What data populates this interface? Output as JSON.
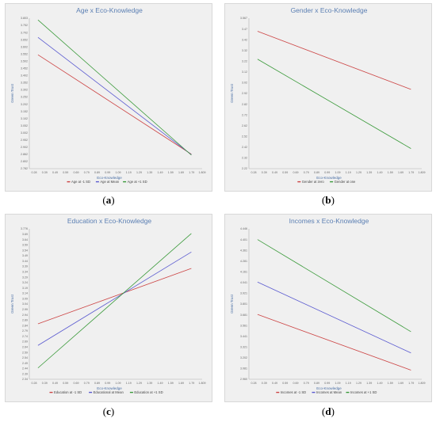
{
  "charts": [
    {
      "caption": "a",
      "chart_data": {
        "type": "line",
        "title": "Age x Eco-Knowledge",
        "xlabel": "Eco-Knowledge",
        "ylabel": "Green Trust",
        "xlim": [
          0.2,
          1.8
        ],
        "ylim": [
          2.782,
          3.803
        ],
        "xticks": [
          "0.28",
          "0.39",
          "0.49",
          "0.59",
          "0.69",
          "0.79",
          "0.89",
          "0.99",
          "1.09",
          "1.19",
          "1.29",
          "1.39",
          "1.49",
          "1.59",
          "1.69",
          "1.79",
          "1.809"
        ],
        "yticks": [
          "2.782",
          "2.802",
          "2.862",
          "2.902",
          "2.952",
          "3.002",
          "3.052",
          "3.102",
          "3.152",
          "3.202",
          "3.252",
          "3.302",
          "3.352",
          "3.402",
          "3.452",
          "3.502",
          "3.552",
          "3.602",
          "3.652",
          "3.702",
          "3.752",
          "3.803"
        ],
        "series": [
          {
            "name": "Age at -1 SD",
            "color": "#cc4444",
            "x": [
              0.28,
              1.7
            ],
            "y": [
              3.555,
              2.88
            ]
          },
          {
            "name": "Age at Mean",
            "color": "#5a5ad0",
            "x": [
              0.28,
              1.7
            ],
            "y": [
              3.673,
              2.877
            ]
          },
          {
            "name": "Age at +1 SD",
            "color": "#3a9a3a",
            "x": [
              0.28,
              1.7
            ],
            "y": [
              3.791,
              2.874
            ]
          }
        ]
      }
    },
    {
      "caption": "b",
      "chart_data": {
        "type": "line",
        "title": "Gender x Eco-Knowledge",
        "xlabel": "Eco-Knowledge",
        "ylabel": "Green Trust",
        "xlim": [
          0.2,
          1.8
        ],
        "ylim": [
          2.22,
          3.567
        ],
        "xticks": [
          "0.28",
          "0.39",
          "0.49",
          "0.59",
          "0.69",
          "0.79",
          "0.89",
          "0.99",
          "1.09",
          "1.19",
          "1.29",
          "1.39",
          "1.49",
          "1.59",
          "1.69",
          "1.79",
          "1.809"
        ],
        "yticks": [
          "2.22",
          "2.32",
          "2.42",
          "2.52",
          "2.62",
          "2.72",
          "2.82",
          "2.92",
          "3.02",
          "3.12",
          "3.22",
          "3.32",
          "3.42",
          "3.47",
          "3.567"
        ],
        "series": [
          {
            "name": "Gender at zero",
            "color": "#cc4444",
            "x": [
              0.28,
              1.7
            ],
            "y": [
              3.45,
              2.93
            ]
          },
          {
            "name": "Gender at one",
            "color": "#3a9a3a",
            "x": [
              0.28,
              1.7
            ],
            "y": [
              3.2,
              2.4
            ]
          }
        ]
      }
    },
    {
      "caption": "c",
      "chart_data": {
        "type": "line",
        "title": "Education x Eco-Knowledge",
        "xlabel": "Eco-Knowledge",
        "ylabel": "Green Trust",
        "xlim": [
          0.2,
          1.8
        ],
        "ylim": [
          2.31,
          3.776
        ],
        "xticks": [
          "0.28",
          "0.39",
          "0.49",
          "0.59",
          "0.69",
          "0.79",
          "0.89",
          "0.99",
          "1.09",
          "1.19",
          "1.29",
          "1.39",
          "1.49",
          "1.59",
          "1.69",
          "1.79",
          "1.809"
        ],
        "yticks": [
          "2.34",
          "2.39",
          "2.44",
          "2.49",
          "2.54",
          "2.59",
          "2.64",
          "2.69",
          "2.74",
          "2.79",
          "2.84",
          "2.89",
          "2.94",
          "2.99",
          "3.04",
          "3.09",
          "3.14",
          "3.19",
          "3.24",
          "3.29",
          "3.34",
          "3.39",
          "3.44",
          "3.49",
          "3.54",
          "3.59",
          "3.64",
          "3.69",
          "3.776"
        ],
        "series": [
          {
            "name": "Education at -1 SD",
            "color": "#cc4444",
            "x": [
              0.28,
              1.7
            ],
            "y": [
              2.85,
              3.39
            ]
          },
          {
            "name": "Educational at Mean",
            "color": "#5a5ad0",
            "x": [
              0.28,
              1.7
            ],
            "y": [
              2.64,
              3.55
            ]
          },
          {
            "name": "Education at +1 SD",
            "color": "#3a9a3a",
            "x": [
              0.28,
              1.7
            ],
            "y": [
              2.42,
              3.73
            ]
          }
        ]
      }
    },
    {
      "caption": "d",
      "chart_data": {
        "type": "line",
        "title": "Incomes x Eco-Knowledge",
        "xlabel": "Eco-Knowledge",
        "ylabel": "Green Trust",
        "xlim": [
          0.2,
          1.8
        ],
        "ylim": [
          2.96,
          4.446
        ],
        "xticks": [
          "0.28",
          "0.39",
          "0.49",
          "0.59",
          "0.69",
          "0.79",
          "0.89",
          "0.99",
          "1.09",
          "1.19",
          "1.29",
          "1.39",
          "1.49",
          "1.59",
          "1.69",
          "1.79",
          "1.809"
        ],
        "yticks": [
          "2.960",
          "3.081",
          "3.202",
          "3.321",
          "3.441",
          "3.561",
          "3.681",
          "3.801",
          "3.921",
          "4.041",
          "4.161",
          "4.281",
          "4.361",
          "4.401",
          "4.446"
        ],
        "series": [
          {
            "name": "Incomes at -1 SD",
            "color": "#cc4444",
            "x": [
              0.28,
              1.7
            ],
            "y": [
              3.6,
              3.05
            ]
          },
          {
            "name": "Incomes at Mean",
            "color": "#5a5ad0",
            "x": [
              0.28,
              1.7
            ],
            "y": [
              3.92,
              3.22
            ]
          },
          {
            "name": "Incomes at +1 SD",
            "color": "#3a9a3a",
            "x": [
              0.28,
              1.7
            ],
            "y": [
              4.34,
              3.43
            ]
          }
        ]
      }
    }
  ]
}
